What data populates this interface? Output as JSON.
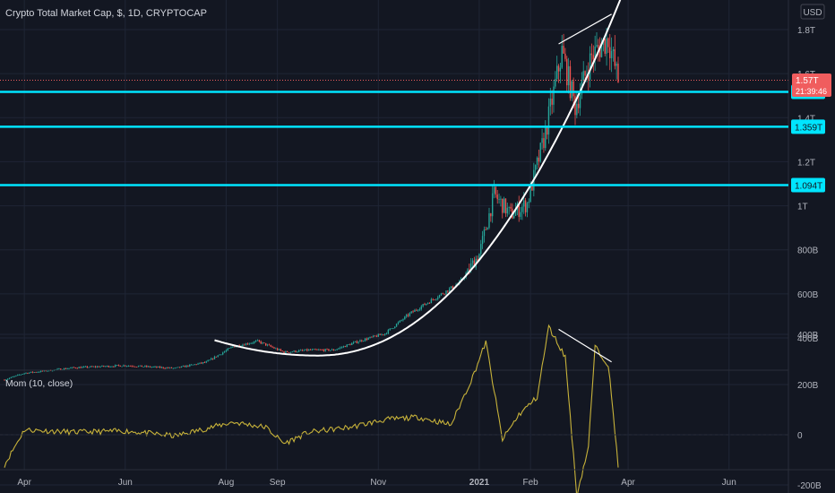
{
  "header": {
    "title": "Crypto Total Market Cap, $, 1D, CRYPTOCAP",
    "currency": "USD"
  },
  "indicator": {
    "title": "Mom (10, close)"
  },
  "price_tag": {
    "value": "1.57T",
    "countdown": "21:39:46"
  },
  "colors": {
    "background": "#131722",
    "grid": "#1f2535",
    "axis_text": "#b2b5be",
    "candle_up": "#26a69a",
    "candle_down": "#ef5350",
    "support_line": "#00e5ff",
    "curve": "#ffffff",
    "momentum": "#c7b23a",
    "price_tag": "#f05d5e"
  },
  "chart_data": [
    {
      "type": "candlestick",
      "title": "Crypto Total Market Cap, $, 1D, CRYPTOCAP",
      "x_tick_labels": [
        "Apr",
        "Jun",
        "Aug",
        "Sep",
        "Nov",
        "2021",
        "Feb",
        "Apr",
        "Jun"
      ],
      "y_tick_labels": [
        "1.8T",
        "1.6T",
        "1.4T",
        "1.2T",
        "1T",
        "800B",
        "600B",
        "400B"
      ],
      "y_tick_values": [
        1800,
        1600,
        1400,
        1200,
        1000,
        800,
        600,
        400
      ],
      "y_unit": "B USD",
      "horizontal_levels": [
        {
          "label": "1.517T",
          "value": 1517
        },
        {
          "label": "1.359T",
          "value": 1359
        },
        {
          "label": "1.094T",
          "value": 1094
        }
      ],
      "current_price": {
        "label": "1.57T",
        "value": 1570
      },
      "close_path": [
        [
          "2020-03-20",
          210
        ],
        [
          "2020-04-01",
          240
        ],
        [
          "2020-05-01",
          265
        ],
        [
          "2020-06-01",
          275
        ],
        [
          "2020-07-01",
          262
        ],
        [
          "2020-07-20",
          290
        ],
        [
          "2020-08-05",
          360
        ],
        [
          "2020-08-20",
          385
        ],
        [
          "2020-09-05",
          335
        ],
        [
          "2020-09-20",
          345
        ],
        [
          "2020-10-05",
          345
        ],
        [
          "2020-10-20",
          385
        ],
        [
          "2020-11-05",
          420
        ],
        [
          "2020-11-20",
          510
        ],
        [
          "2020-12-05",
          580
        ],
        [
          "2020-12-20",
          650
        ],
        [
          "2021-01-01",
          780
        ],
        [
          "2021-01-10",
          1050
        ],
        [
          "2021-01-20",
          960
        ],
        [
          "2021-01-30",
          1010
        ],
        [
          "2021-02-10",
          1330
        ],
        [
          "2021-02-20",
          1700
        ],
        [
          "2021-02-28",
          1450
        ],
        [
          "2021-03-10",
          1680
        ],
        [
          "2021-03-20",
          1760
        ],
        [
          "2021-03-26",
          1570
        ]
      ],
      "annotations": [
        {
          "type": "trendline",
          "from": [
            "2021-02-18",
            1735
          ],
          "to": [
            "2021-03-22",
            1870
          ]
        },
        {
          "type": "parabolic_curve",
          "from": [
            "2020-07-25",
            390
          ],
          "to": [
            "2021-03-28",
            1950
          ],
          "vertex": [
            "2020-09-25",
            320
          ]
        }
      ]
    },
    {
      "type": "line",
      "title": "Mom (10, close)",
      "y_tick_labels": [
        "400B",
        "200B",
        "0",
        "-200B"
      ],
      "y_tick_values": [
        400,
        200,
        0,
        -200
      ],
      "series": [
        {
          "values": [
            [
              "2020-03-20",
              -120
            ],
            [
              "2020-04-01",
              20
            ],
            [
              "2020-05-01",
              10
            ],
            [
              "2020-06-01",
              15
            ],
            [
              "2020-07-01",
              -5
            ],
            [
              "2020-08-05",
              50
            ],
            [
              "2020-08-25",
              30
            ],
            [
              "2020-09-05",
              -35
            ],
            [
              "2020-09-20",
              10
            ],
            [
              "2020-10-15",
              30
            ],
            [
              "2020-11-05",
              60
            ],
            [
              "2020-11-25",
              70
            ],
            [
              "2020-12-15",
              40
            ],
            [
              "2020-12-28",
              230
            ],
            [
              "2021-01-05",
              370
            ],
            [
              "2021-01-15",
              -20
            ],
            [
              "2021-01-25",
              80
            ],
            [
              "2021-02-05",
              150
            ],
            [
              "2021-02-12",
              430
            ],
            [
              "2021-02-22",
              310
            ],
            [
              "2021-03-01",
              -240
            ],
            [
              "2021-03-08",
              -50
            ],
            [
              "2021-03-12",
              350
            ],
            [
              "2021-03-20",
              280
            ],
            [
              "2021-03-26",
              -120
            ]
          ]
        }
      ],
      "annotations": [
        {
          "type": "trendline",
          "from": [
            "2021-02-18",
            420
          ],
          "to": [
            "2021-03-22",
            290
          ]
        }
      ]
    }
  ]
}
